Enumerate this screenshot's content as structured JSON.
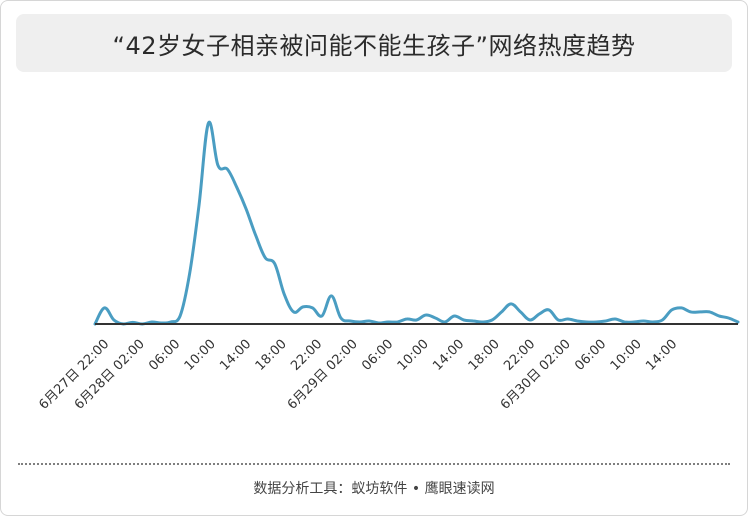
{
  "title": "“42岁女子相亲被问能不能生孩子”网络热度趋势",
  "footer": "数据分析工具：蚁坊软件 • 鹰眼速读网",
  "colors": {
    "line": "#4a9dc2",
    "axis": "#333333",
    "title_bg": "#efefef"
  },
  "chart_data": {
    "type": "line",
    "title": "“42岁女子相亲被问能不能生孩子”网络热度趋势",
    "xlabel": "",
    "ylabel": "",
    "grid": false,
    "legend": "none",
    "x_ticks": [
      "6月27日 22:00",
      "6月28日 02:00",
      "06:00",
      "10:00",
      "14:00",
      "18:00",
      "22:00",
      "6月29日 02:00",
      "06:00",
      "10:00",
      "14:00",
      "18:00",
      "22:00",
      "6月30日 02:00",
      "06:00",
      "10:00",
      "14:00"
    ],
    "x_start": "2023-06-27 20:00",
    "x_end": "2023-06-30 16:00",
    "ylim": [
      0,
      100
    ],
    "series": [
      {
        "name": "",
        "times": [
          "06-27 20:00",
          "06-27 21:00",
          "06-27 22:00",
          "06-27 23:00",
          "06-28 00:00",
          "06-28 01:00",
          "06-28 02:00",
          "06-28 03:00",
          "06-28 04:00",
          "06-28 05:00",
          "06-28 06:00",
          "06-28 07:00",
          "06-28 08:00",
          "06-28 09:00",
          "06-28 10:00",
          "06-28 11:00",
          "06-28 12:00",
          "06-28 13:00",
          "06-28 14:00",
          "06-28 15:00",
          "06-28 16:00",
          "06-28 17:00",
          "06-28 18:00",
          "06-28 19:00",
          "06-28 20:00",
          "06-28 21:00",
          "06-28 22:00",
          "06-28 23:00",
          "06-29 00:00",
          "06-29 01:00",
          "06-29 02:00",
          "06-29 03:00",
          "06-29 04:00",
          "06-29 05:00",
          "06-29 06:00",
          "06-29 07:00",
          "06-29 08:00",
          "06-29 09:00",
          "06-29 10:00",
          "06-29 11:00",
          "06-29 12:00",
          "06-29 13:00",
          "06-29 14:00",
          "06-29 15:00",
          "06-29 16:00",
          "06-29 17:00",
          "06-29 18:00",
          "06-29 19:00",
          "06-29 20:00",
          "06-29 21:00",
          "06-29 22:00",
          "06-29 23:00",
          "06-30 00:00",
          "06-30 01:00",
          "06-30 02:00",
          "06-30 03:00",
          "06-30 04:00",
          "06-30 05:00",
          "06-30 06:00",
          "06-30 07:00",
          "06-30 08:00",
          "06-30 09:00",
          "06-30 10:00",
          "06-30 11:00",
          "06-30 12:00",
          "06-30 13:00",
          "06-30 14:00",
          "06-30 15:00",
          "06-30 16:00"
        ],
        "values": [
          0,
          8,
          2,
          0,
          0.8,
          0,
          1,
          0.5,
          1,
          4,
          25,
          59,
          100,
          79,
          77,
          68,
          57,
          44,
          33,
          30,
          15,
          6,
          8.5,
          8,
          4,
          14,
          3,
          1.5,
          1,
          1.5,
          0.5,
          1,
          1,
          2.5,
          2,
          4.5,
          3,
          1,
          4,
          2,
          1.5,
          1,
          2,
          6,
          10,
          6,
          2,
          5,
          7,
          2,
          2.5,
          1.5,
          1,
          1,
          1.5,
          2.5,
          1,
          1,
          1.5,
          1,
          2,
          7,
          8,
          6,
          6,
          6,
          4,
          3,
          1
        ]
      }
    ]
  }
}
